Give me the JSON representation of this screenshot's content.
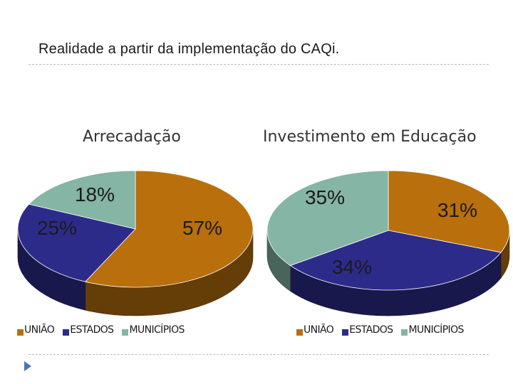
{
  "slide": {
    "title": "Realidade a partir da implementação do CAQi."
  },
  "colors": {
    "uniao": "#b86f0c",
    "estados": "#2d2b8a",
    "municipios": "#85b5a4"
  },
  "chart_data": [
    {
      "type": "pie",
      "title": "Arrecadação",
      "categories": [
        "UNIÃO",
        "ESTADOS",
        "MUNICÍPIOS"
      ],
      "values": [
        57,
        25,
        18
      ],
      "labels": [
        "57%",
        "25%",
        "18%"
      ],
      "legend": "bottom",
      "style": "3d"
    },
    {
      "type": "pie",
      "title": "Investimento em Educação",
      "categories": [
        "UNIÃO",
        "ESTADOS",
        "MUNICÍPIOS"
      ],
      "values": [
        31,
        34,
        35
      ],
      "labels": [
        "31%",
        "34%",
        "35%"
      ],
      "legend": "bottom",
      "style": "3d"
    }
  ]
}
